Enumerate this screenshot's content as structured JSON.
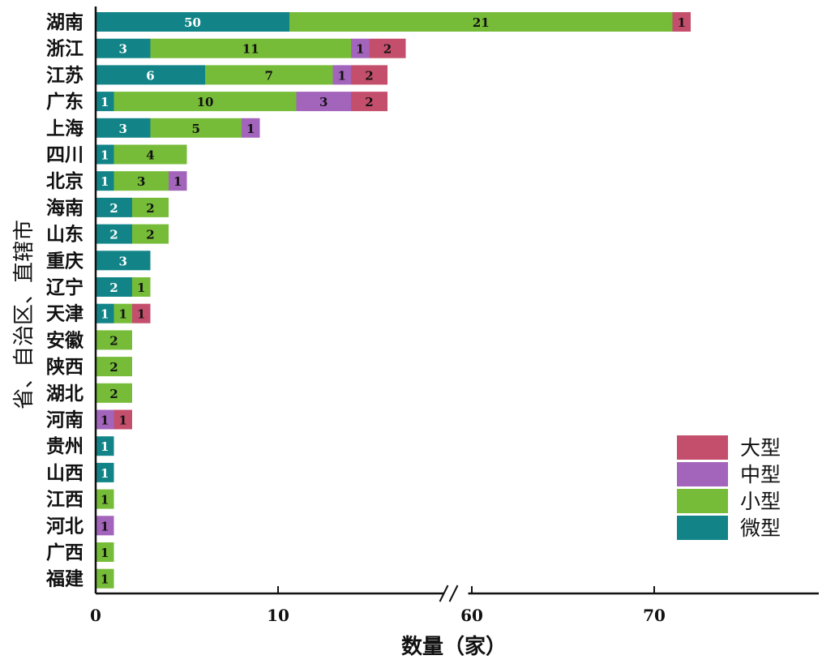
{
  "chart_data": {
    "type": "bar",
    "orientation": "horizontal",
    "stacked": true,
    "xlabel": "数量（家）",
    "ylabel": "省、自治区、直辖市",
    "x_ticks": [
      "0",
      "10",
      "60",
      "70"
    ],
    "axis_break": {
      "from": 19,
      "to": 59
    },
    "legend_placement": "bottom-right",
    "categories": [
      "湖南",
      "浙江",
      "江苏",
      "广东",
      "上海",
      "四川",
      "北京",
      "海南",
      "山东",
      "重庆",
      "辽宁",
      "天津",
      "安徽",
      "陕西",
      "湖北",
      "河南",
      "贵州",
      "山西",
      "江西",
      "河北",
      "广西",
      "福建"
    ],
    "series": [
      {
        "name": "微型",
        "color": "#128488",
        "label_color": "#ffffff",
        "values": [
          50,
          3,
          6,
          1,
          3,
          1,
          1,
          2,
          2,
          3,
          2,
          1,
          0,
          0,
          0,
          0,
          1,
          1,
          0,
          0,
          0,
          0
        ]
      },
      {
        "name": "小型",
        "color": "#76BC38",
        "label_color": "#111111",
        "values": [
          21,
          11,
          7,
          10,
          5,
          4,
          3,
          2,
          2,
          0,
          1,
          1,
          2,
          2,
          2,
          0,
          0,
          0,
          1,
          0,
          1,
          1
        ]
      },
      {
        "name": "中型",
        "color": "#A364BC",
        "label_color": "#111111",
        "values": [
          0,
          1,
          1,
          3,
          1,
          0,
          1,
          0,
          0,
          0,
          0,
          0,
          0,
          0,
          0,
          1,
          0,
          0,
          0,
          1,
          0,
          0
        ]
      },
      {
        "name": "大型",
        "color": "#C44F6C",
        "label_color": "#111111",
        "values": [
          1,
          2,
          2,
          2,
          0,
          0,
          0,
          0,
          0,
          0,
          0,
          1,
          0,
          0,
          0,
          1,
          0,
          0,
          0,
          0,
          0,
          0
        ]
      }
    ],
    "legend_order": [
      "大型",
      "中型",
      "小型",
      "微型"
    ]
  }
}
